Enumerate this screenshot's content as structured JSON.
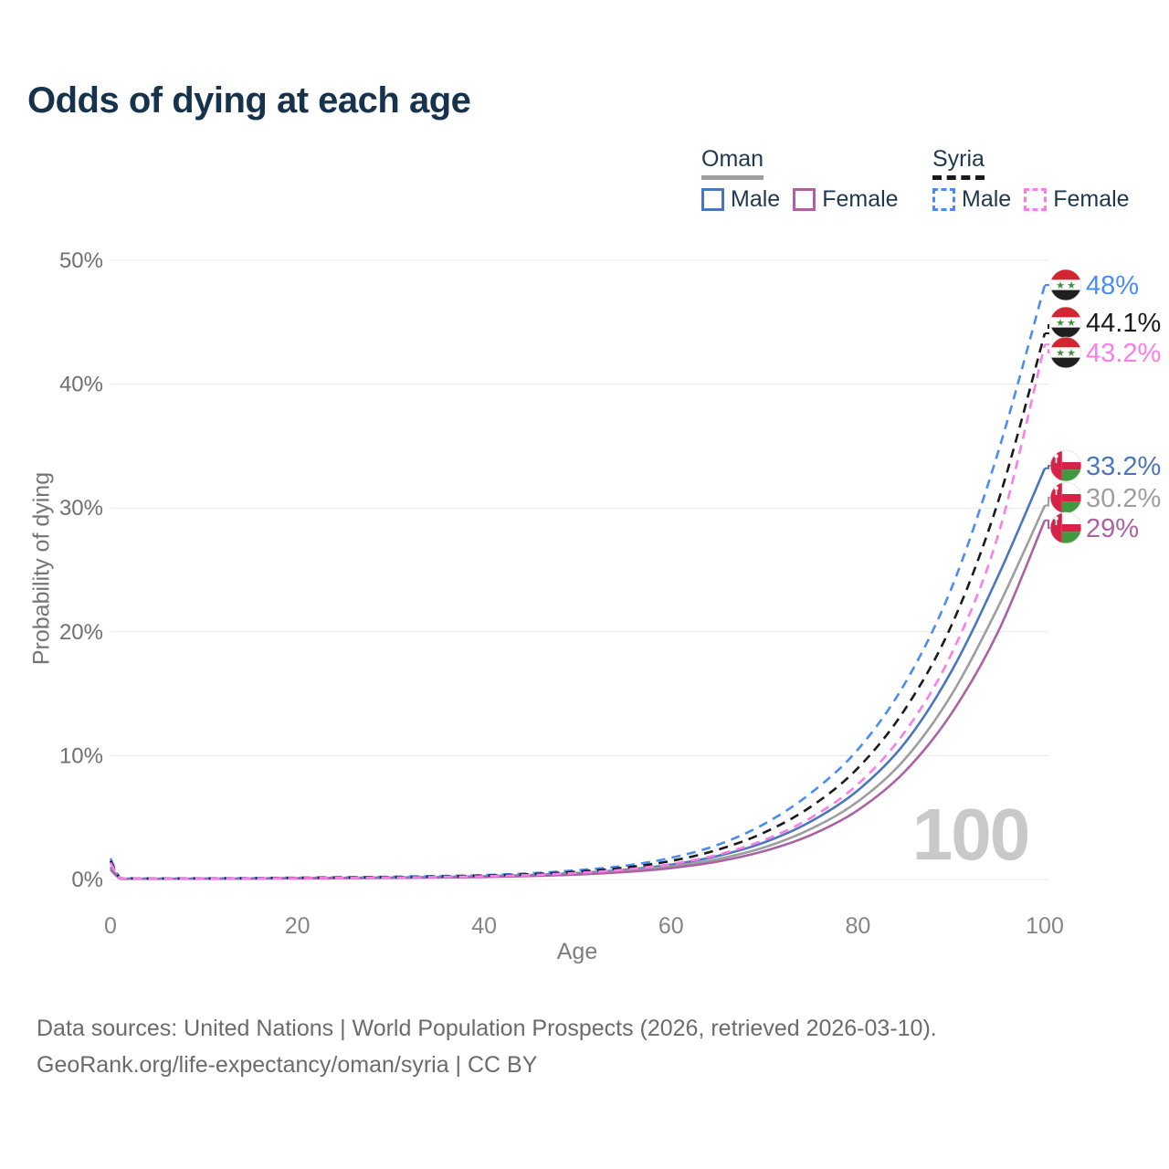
{
  "header": {
    "title": "Odds of dying at each age"
  },
  "legend": {
    "groups": [
      {
        "label": "Oman",
        "style": "solid",
        "items": [
          {
            "label": "Male",
            "series": 0
          },
          {
            "label": "Female",
            "series": 2
          }
        ]
      },
      {
        "label": "Syria",
        "style": "dashed",
        "items": [
          {
            "label": "Male",
            "series": 3
          },
          {
            "label": "Female",
            "series": 5
          }
        ]
      }
    ]
  },
  "chart_data": {
    "type": "line",
    "title": "Odds of dying at each age",
    "xlabel": "Age",
    "ylabel": "Probability of dying",
    "xlim": [
      0,
      100
    ],
    "ylim": [
      0,
      50
    ],
    "grid": "horizontal",
    "x_ticks": [
      "0",
      "20",
      "40",
      "60",
      "80",
      "100"
    ],
    "x_tick_values": [
      0,
      20,
      40,
      60,
      80,
      100
    ],
    "y_tick_labels": [
      "0%",
      "10%",
      "20%",
      "30%",
      "40%",
      "50%"
    ],
    "y_tick_values": [
      0,
      10,
      20,
      30,
      40,
      50
    ],
    "legend_position": "top-right",
    "x": [
      0,
      1,
      2,
      5,
      10,
      15,
      20,
      25,
      30,
      35,
      40,
      45,
      50,
      55,
      60,
      65,
      70,
      75,
      80,
      85,
      90,
      95,
      100
    ],
    "series": [
      {
        "name": "Oman Male",
        "country": "Oman",
        "sex": "Male",
        "color": "#4a77bb",
        "dash": false,
        "flag": "oman",
        "end_label": "33.2%",
        "end_value": 33.2,
        "values": [
          1.0,
          0.1,
          0.07,
          0.06,
          0.07,
          0.09,
          0.11,
          0.13,
          0.16,
          0.2,
          0.26,
          0.36,
          0.52,
          0.78,
          1.2,
          1.9,
          3.0,
          4.7,
          7.2,
          11.0,
          16.8,
          24.5,
          33.2
        ]
      },
      {
        "name": "Oman Both sexes",
        "country": "Oman",
        "sex": "Both",
        "color": "#9e9e9e",
        "dash": false,
        "flag": "oman",
        "end_label": "30.2%",
        "end_value": 30.2,
        "values": [
          0.9,
          0.09,
          0.06,
          0.055,
          0.065,
          0.08,
          0.1,
          0.12,
          0.14,
          0.18,
          0.23,
          0.32,
          0.46,
          0.7,
          1.05,
          1.65,
          2.6,
          4.1,
          6.3,
          9.7,
          14.9,
          22.0,
          30.2
        ]
      },
      {
        "name": "Oman Female",
        "country": "Oman",
        "sex": "Female",
        "color": "#ab62a4",
        "dash": false,
        "flag": "oman",
        "end_label": "29%",
        "end_value": 29.0,
        "values": [
          0.8,
          0.08,
          0.055,
          0.05,
          0.06,
          0.07,
          0.09,
          0.11,
          0.13,
          0.16,
          0.2,
          0.28,
          0.4,
          0.6,
          0.92,
          1.45,
          2.3,
          3.6,
          5.6,
          8.7,
          13.4,
          20.0,
          29.0
        ]
      },
      {
        "name": "Syria Male",
        "country": "Syria",
        "sex": "Male",
        "color": "#4a8cf5",
        "dash": true,
        "flag": "syria",
        "end_label": "48%",
        "end_value": 48.0,
        "values": [
          1.7,
          0.15,
          0.1,
          0.09,
          0.1,
          0.12,
          0.15,
          0.18,
          0.22,
          0.28,
          0.36,
          0.5,
          0.75,
          1.1,
          1.75,
          2.8,
          4.5,
          7.0,
          10.5,
          15.8,
          23.5,
          34.5,
          48.0
        ]
      },
      {
        "name": "Syria Both sexes",
        "country": "Syria",
        "sex": "Both",
        "color": "#1a1a1a",
        "dash": true,
        "flag": "syria",
        "end_label": "44.1%",
        "end_value": 44.1,
        "values": [
          1.5,
          0.13,
          0.09,
          0.08,
          0.09,
          0.1,
          0.13,
          0.16,
          0.19,
          0.24,
          0.31,
          0.43,
          0.63,
          0.95,
          1.5,
          2.4,
          3.8,
          5.9,
          9.0,
          13.7,
          20.5,
          30.5,
          44.1
        ]
      },
      {
        "name": "Syria Female",
        "country": "Syria",
        "sex": "Female",
        "color": "#fb7de9",
        "dash": true,
        "flag": "syria",
        "end_label": "43.2%",
        "end_value": 43.2,
        "values": [
          1.35,
          0.12,
          0.08,
          0.07,
          0.08,
          0.09,
          0.11,
          0.13,
          0.16,
          0.2,
          0.26,
          0.36,
          0.53,
          0.8,
          1.25,
          2.0,
          3.2,
          5.0,
          7.7,
          11.9,
          18.2,
          27.8,
          43.2
        ]
      }
    ],
    "flag_colors": {
      "syria_red": "#d22630",
      "syria_black": "#1f1f1f",
      "syria_star_green": "#3f9141",
      "oman_red": "#d62246",
      "oman_green": "#3f9a3f"
    }
  },
  "annotations": {
    "hover_age_watermark": "100"
  },
  "footer": {
    "line1": "Data sources: United Nations | World Population Prospects (2026, retrieved 2026-03-10).",
    "line2": "GeoRank.org/life-expectancy/oman/syria | CC BY"
  },
  "theme": {
    "title_color": "#17324d",
    "legend_text_color": "#1f3850",
    "grid_color": "#e8e8e8",
    "y_tick_color": "#6f6f6f",
    "x_tick_color": "#858585",
    "axis_title_color": "#757575",
    "watermark_color": "#c9c9c9",
    "footer_color": "#6b6b6b"
  }
}
